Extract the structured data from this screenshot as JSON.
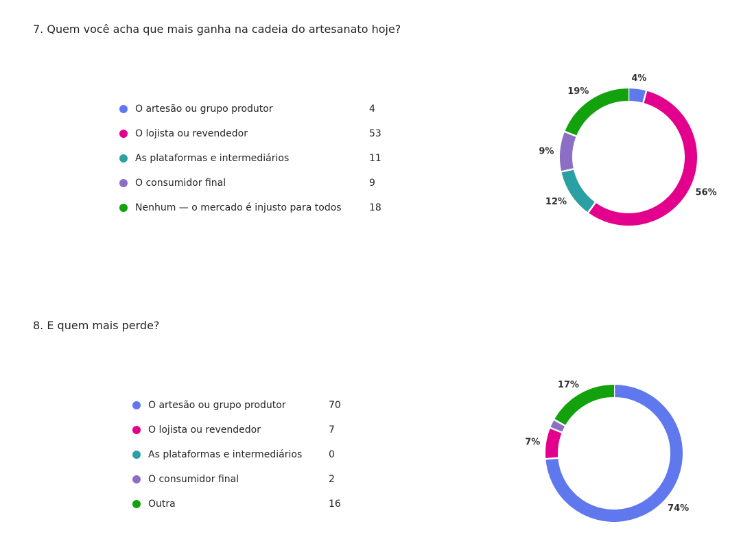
{
  "chart_data": [
    {
      "type": "pie",
      "title": "7. Quem você acha que mais ganha na cadeia do artesanato hoje?",
      "categories": [
        "O artesão ou grupo produtor",
        "O lojista ou revendedor",
        "As plataformas e intermediários",
        "O consumidor final",
        "Nenhum — o mercado é injusto para todos"
      ],
      "values": [
        4,
        53,
        11,
        9,
        18
      ],
      "percent_labels": [
        "4%",
        "56%",
        "12%",
        "9%",
        "19%"
      ],
      "colors": [
        "#6078ee",
        "#e3008c",
        "#2aa0a4",
        "#8c6fc4",
        "#13a10e"
      ]
    },
    {
      "type": "pie",
      "title": "8. E quem mais perde?",
      "categories": [
        "O artesão ou grupo produtor",
        "O lojista ou revendedor",
        "As plataformas e intermediários",
        "O consumidor final",
        "Outra"
      ],
      "values": [
        70,
        7,
        0,
        2,
        16
      ],
      "percent_labels": [
        "74%",
        "7%",
        "",
        "",
        "17%"
      ],
      "colors": [
        "#6078ee",
        "#e3008c",
        "#2aa0a4",
        "#8c6fc4",
        "#13a10e"
      ]
    }
  ]
}
